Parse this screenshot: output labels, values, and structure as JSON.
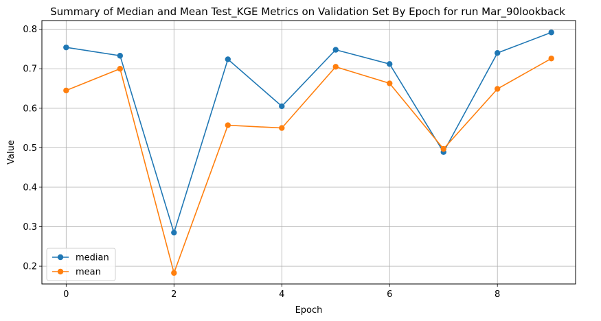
{
  "chart_data": {
    "type": "line",
    "title": "Summary of Median and Mean Test_KGE Metrics on Validation Set By Epoch for run Mar_90lookback",
    "xlabel": "Epoch",
    "ylabel": "Value",
    "x": [
      0,
      1,
      2,
      3,
      4,
      5,
      6,
      7,
      8,
      9
    ],
    "xticks": [
      0,
      2,
      4,
      6,
      8
    ],
    "yticks": [
      0.2,
      0.3,
      0.4,
      0.5,
      0.6,
      0.7,
      0.8
    ],
    "xlim": [
      -0.45,
      9.45
    ],
    "ylim": [
      0.155,
      0.822
    ],
    "grid": true,
    "legend_position": "lower-left",
    "series": [
      {
        "name": "median",
        "color": "#1f77b4",
        "values": [
          0.754,
          0.733,
          0.285,
          0.724,
          0.605,
          0.748,
          0.712,
          0.489,
          0.74,
          0.792
        ]
      },
      {
        "name": "mean",
        "color": "#ff7f0e",
        "values": [
          0.645,
          0.7,
          0.183,
          0.557,
          0.55,
          0.705,
          0.663,
          0.497,
          0.649,
          0.726
        ]
      }
    ]
  }
}
